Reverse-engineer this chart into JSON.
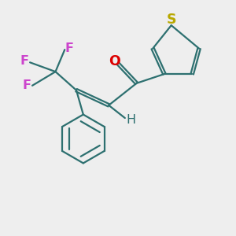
{
  "background_color": "#eeeeee",
  "bond_color": "#2d7070",
  "thiophene_S_color": "#b8a800",
  "O_color": "#dd0000",
  "F_color": "#cc44cc",
  "H_color": "#2d7070",
  "bond_width": 1.6,
  "fig_width": 3.0,
  "fig_height": 3.0,
  "xlim": [
    0,
    10
  ],
  "ylim": [
    0,
    10
  ]
}
